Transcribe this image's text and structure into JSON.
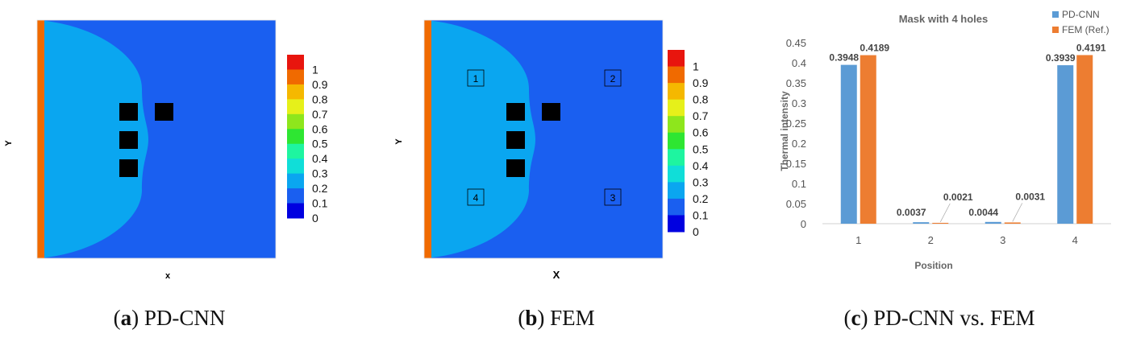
{
  "panels": [
    {
      "id": "a",
      "xlabel": "x",
      "ylabel": "Y",
      "caption_letter": "a",
      "caption_text": "PD-CNN",
      "colorbar_ticks": [
        "1",
        "0.9",
        "0.8",
        "0.7",
        "0.6",
        "0.5",
        "0.4",
        "0.3",
        "0.2",
        "0.1",
        "0"
      ],
      "hole_labels": []
    },
    {
      "id": "b",
      "xlabel": "X",
      "ylabel": "Y",
      "caption_letter": "b",
      "caption_text": "FEM",
      "colorbar_ticks": [
        "1",
        "0.9",
        "0.8",
        "0.7",
        "0.6",
        "0.5",
        "0.4",
        "0.3",
        "0.2",
        "0.1",
        "0"
      ],
      "hole_labels": [
        "1",
        "2",
        "3",
        "4"
      ]
    }
  ],
  "colormap": [
    "#0000e0",
    "#1a5ff0",
    "#0aa6f0",
    "#10ded8",
    "#1ef5a0",
    "#2ee632",
    "#8ee61c",
    "#e6f01a",
    "#f5b800",
    "#f06a00",
    "#e8150e"
  ],
  "bar_panel": {
    "caption_letter": "c",
    "caption_text": "PD-CNN vs. FEM"
  },
  "chart_data": {
    "type": "bar",
    "title": "Mask with 4 holes",
    "xlabel": "Position",
    "ylabel": "Thermal intensity",
    "categories": [
      "1",
      "2",
      "3",
      "4"
    ],
    "series": [
      {
        "name": "PD-CNN",
        "color": "#5b9bd5",
        "values": [
          0.3948,
          0.0037,
          0.0044,
          0.3939
        ],
        "labels": [
          "0.3948",
          "0.0037",
          "0.0044",
          "0.3939"
        ]
      },
      {
        "name": "FEM (Ref.)",
        "color": "#ed7d31",
        "values": [
          0.4189,
          0.0021,
          0.0031,
          0.4191
        ],
        "labels": [
          "0.4189",
          "0.0021",
          "0.0031",
          "0.4191"
        ]
      }
    ],
    "ylim": [
      0,
      0.45
    ],
    "yticks": [
      "0",
      "0.05",
      "0.1",
      "0.15",
      "0.2",
      "0.25",
      "0.3",
      "0.35",
      "0.4",
      "0.45"
    ],
    "grid": false,
    "legend": "top-right"
  }
}
